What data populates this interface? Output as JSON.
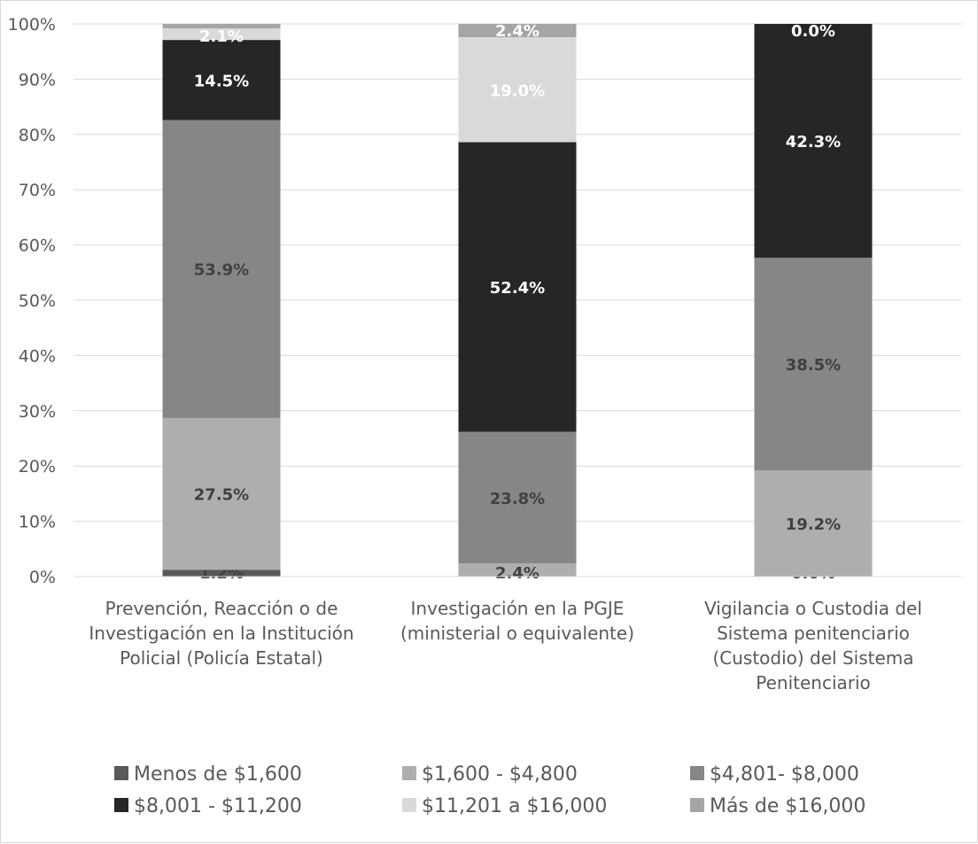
{
  "chart_data": {
    "type": "bar",
    "stacked": true,
    "percent": true,
    "ylim": [
      0,
      100
    ],
    "yticks": [
      "0%",
      "10%",
      "20%",
      "30%",
      "40%",
      "50%",
      "60%",
      "70%",
      "80%",
      "90%",
      "100%"
    ],
    "grid": true,
    "legend_position": "bottom",
    "categories": [
      [
        "Prevención, Reacción o de",
        "Investigación en la Institución",
        "Policial (Policía Estatal)"
      ],
      [
        "Investigación en la PGJE",
        "(ministerial o equivalente)"
      ],
      [
        "Vigilancia o Custodia del",
        "Sistema penitenciario",
        "(Custodio) del Sistema",
        "Penitenciario"
      ]
    ],
    "series": [
      {
        "name": "Menos de $1,600",
        "color": "#595959",
        "label_color": "#404040",
        "values": [
          1.2,
          0.0,
          0.0
        ],
        "labels": [
          "1.2%",
          "",
          "0.0%"
        ]
      },
      {
        "name": "$1,600 - $4,800",
        "color": "#aeaeae",
        "label_color": "#404040",
        "values": [
          27.5,
          2.4,
          19.2
        ],
        "labels": [
          "27.5%",
          "2.4%",
          "19.2%"
        ]
      },
      {
        "name": "$4,801- $8,000",
        "color": "#868686",
        "label_color": "#404040",
        "values": [
          53.9,
          23.8,
          38.5
        ],
        "labels": [
          "53.9%",
          "23.8%",
          "38.5%"
        ]
      },
      {
        "name": "$8,001 - $11,200",
        "color": "#262626",
        "label_color": "#ffffff",
        "values": [
          14.5,
          52.4,
          42.3
        ],
        "labels": [
          "14.5%",
          "52.4%",
          "42.3%"
        ]
      },
      {
        "name": "$11,201 a $16,000",
        "color": "#d9d9d9",
        "label_color": "#ffffff",
        "values": [
          2.1,
          19.0,
          0.0
        ],
        "labels": [
          "2.1%",
          "19.0%",
          "0.0%"
        ]
      },
      {
        "name": "Más de $16,000",
        "color": "#a5a5a5",
        "label_color": "#ffffff",
        "values": [
          0.8,
          2.4,
          0.0
        ],
        "labels": [
          "",
          "2.4%",
          ""
        ]
      }
    ]
  }
}
